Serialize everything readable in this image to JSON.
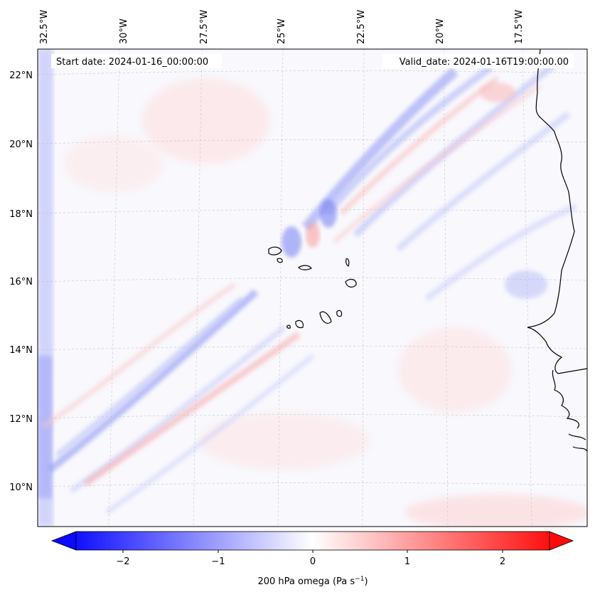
{
  "map": {
    "start_date_label": "Start date: 2024-01-16_00:00:00",
    "valid_date_label": "Valid_date: 2024-01-16T19:00:00.00",
    "lon_labels": [
      "32.5°W",
      "30°W",
      "27.5°W",
      "25°W",
      "22.5°W",
      "20°W",
      "17.5°W"
    ],
    "lat_labels": [
      "22°N",
      "20°N",
      "18°N",
      "16°N",
      "14°N",
      "12°N",
      "10°N"
    ],
    "extent": {
      "lon_min": -33.0,
      "lon_max": -15.5,
      "lat_min": 8.8,
      "lat_max": 22.8
    },
    "grid": true,
    "coastlines": true
  },
  "colorbar": {
    "label_main": "200 hPa omega (Pa s",
    "label_sup": "−1",
    "label_end": ")",
    "ticks": [
      "−2",
      "−1",
      "0",
      "1",
      "2"
    ],
    "tick_values": [
      -2,
      -1,
      0,
      1,
      2
    ],
    "vmin": -2.5,
    "vmax": 2.5,
    "extend": "both",
    "colormap": "bwr",
    "color_low": "#0000ff",
    "color_mid": "#ffffff",
    "color_high": "#ff0000"
  },
  "chart_data": {
    "type": "heatmap",
    "title": "",
    "variable": "200 hPa omega",
    "units": "Pa s−1",
    "xlabel": "",
    "ylabel": "",
    "x_ticks": [
      "32.5°W",
      "30°W",
      "27.5°W",
      "25°W",
      "22.5°W",
      "20°W",
      "17.5°W"
    ],
    "y_ticks": [
      "22°N",
      "20°N",
      "18°N",
      "16°N",
      "14°N",
      "12°N",
      "10°N"
    ],
    "value_range": [
      -2.5,
      2.5
    ]
  }
}
